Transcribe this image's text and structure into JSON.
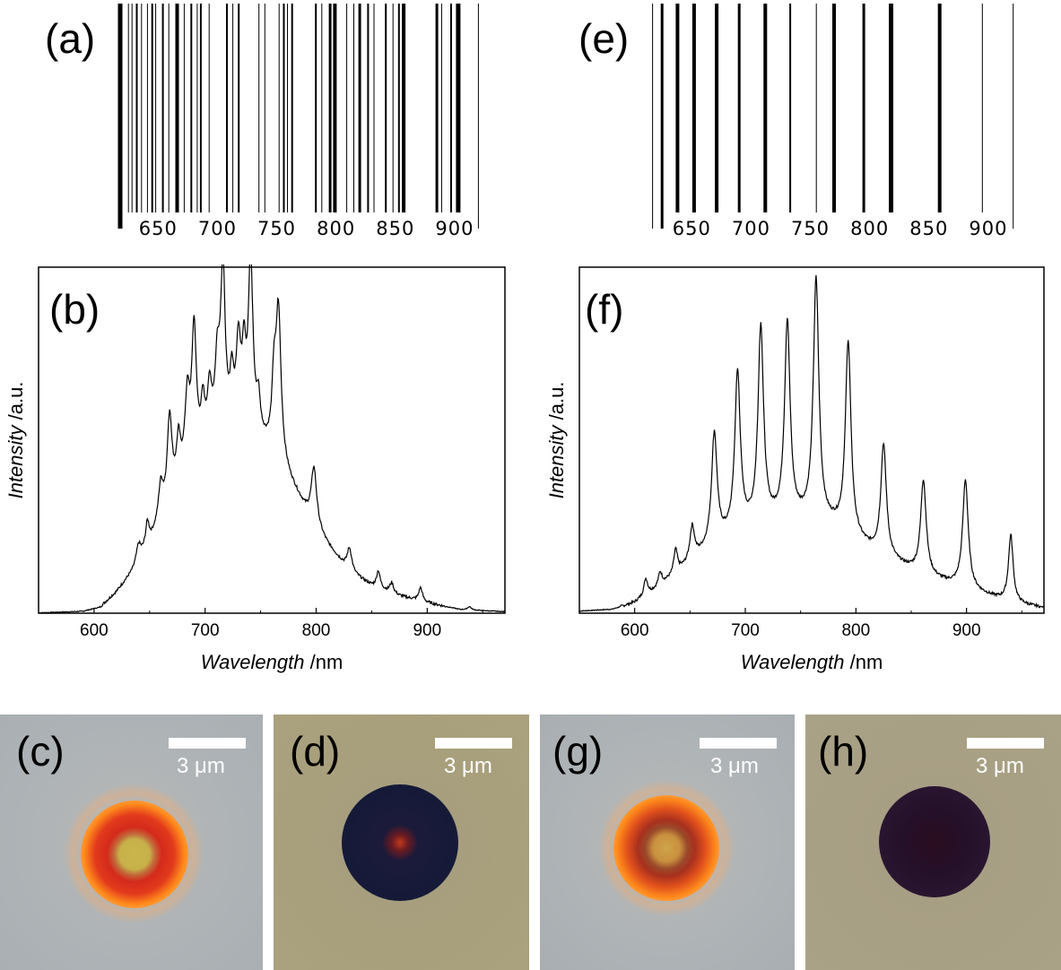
{
  "panels": {
    "a": "(a)",
    "b": "(b)",
    "c": "(c)",
    "d": "(d)",
    "e": "(e)",
    "f": "(f)",
    "g": "(g)",
    "h": "(h)"
  },
  "scale_bar_label": "3 μm",
  "colors": {
    "micro_bg_light": "#aeb3b6",
    "micro_bg_tan": "#a8a07c",
    "micro_bg_tan2": "#a69d83",
    "ring_orange": "#ff8a1c",
    "ring_red": "#d42a1c",
    "core_yellow": "#c9b64a",
    "dark_disk_navy": "#151a38",
    "dark_disk_purple": "#25102a"
  },
  "chart_data": [
    {
      "panel": "a",
      "type": "barcode",
      "xlim": [
        615,
        925
      ],
      "tick_labels": [
        "650",
        "700",
        "750",
        "800",
        "850",
        "900"
      ],
      "lines": [
        {
          "x": 618,
          "w": 5
        },
        {
          "x": 625,
          "w": 1
        },
        {
          "x": 628,
          "w": 1
        },
        {
          "x": 632,
          "w": 2
        },
        {
          "x": 636,
          "w": 1
        },
        {
          "x": 641,
          "w": 1
        },
        {
          "x": 645,
          "w": 2
        },
        {
          "x": 648,
          "w": 1
        },
        {
          "x": 654,
          "w": 2
        },
        {
          "x": 659,
          "w": 1
        },
        {
          "x": 666,
          "w": 4
        },
        {
          "x": 672,
          "w": 1
        },
        {
          "x": 678,
          "w": 2
        },
        {
          "x": 683,
          "w": 1
        },
        {
          "x": 686,
          "w": 2
        },
        {
          "x": 693,
          "w": 1
        },
        {
          "x": 708,
          "w": 2
        },
        {
          "x": 713,
          "w": 1
        },
        {
          "x": 718,
          "w": 2
        },
        {
          "x": 735,
          "w": 1
        },
        {
          "x": 740,
          "w": 1
        },
        {
          "x": 752,
          "w": 1
        },
        {
          "x": 756,
          "w": 2
        },
        {
          "x": 759,
          "w": 1
        },
        {
          "x": 763,
          "w": 2
        },
        {
          "x": 783,
          "w": 2
        },
        {
          "x": 788,
          "w": 1
        },
        {
          "x": 795,
          "w": 3
        },
        {
          "x": 799,
          "w": 4
        },
        {
          "x": 809,
          "w": 1
        },
        {
          "x": 815,
          "w": 1
        },
        {
          "x": 820,
          "w": 3
        },
        {
          "x": 827,
          "w": 2
        },
        {
          "x": 832,
          "w": 1
        },
        {
          "x": 842,
          "w": 2
        },
        {
          "x": 848,
          "w": 1
        },
        {
          "x": 853,
          "w": 2
        },
        {
          "x": 857,
          "w": 4
        },
        {
          "x": 885,
          "w": 3
        },
        {
          "x": 889,
          "w": 1
        },
        {
          "x": 897,
          "w": 2
        },
        {
          "x": 903,
          "w": 5
        },
        {
          "x": 920,
          "w": 1
        }
      ]
    },
    {
      "panel": "e",
      "type": "barcode",
      "xlim": [
        615,
        925
      ],
      "tick_labels": [
        "650",
        "700",
        "750",
        "800",
        "850",
        "900"
      ],
      "lines": [
        {
          "x": 617,
          "w": 1
        },
        {
          "x": 625,
          "w": 3
        },
        {
          "x": 638,
          "w": 4
        },
        {
          "x": 652,
          "w": 4
        },
        {
          "x": 671,
          "w": 4
        },
        {
          "x": 690,
          "w": 3
        },
        {
          "x": 712,
          "w": 4
        },
        {
          "x": 733,
          "w": 2
        },
        {
          "x": 755,
          "w": 1
        },
        {
          "x": 770,
          "w": 4
        },
        {
          "x": 795,
          "w": 3
        },
        {
          "x": 818,
          "w": 5
        },
        {
          "x": 859,
          "w": 4
        },
        {
          "x": 895,
          "w": 1
        },
        {
          "x": 921,
          "w": 1
        }
      ]
    },
    {
      "panel": "b",
      "type": "line",
      "xlabel": "Wavelength /nm",
      "ylabel": "Intensity /a.u.",
      "xlim": [
        550,
        970
      ],
      "ylim": [
        0,
        1
      ],
      "xticks": [
        600,
        700,
        800,
        900
      ],
      "envelope": [
        [
          550,
          0
        ],
        [
          590,
          0.004
        ],
        [
          605,
          0.015
        ],
        [
          620,
          0.06
        ],
        [
          635,
          0.12
        ],
        [
          650,
          0.2
        ],
        [
          665,
          0.3
        ],
        [
          680,
          0.4
        ],
        [
          695,
          0.46
        ],
        [
          710,
          0.5
        ],
        [
          725,
          0.52
        ],
        [
          740,
          0.52
        ],
        [
          760,
          0.47
        ],
        [
          770,
          0.42
        ],
        [
          782,
          0.35
        ],
        [
          795,
          0.27
        ],
        [
          810,
          0.2
        ],
        [
          830,
          0.12
        ],
        [
          850,
          0.08
        ],
        [
          875,
          0.05
        ],
        [
          900,
          0.03
        ],
        [
          930,
          0.01
        ],
        [
          970,
          0.004
        ]
      ],
      "peaks": [
        [
          640,
          0.05,
          2.5
        ],
        [
          648,
          0.07,
          2
        ],
        [
          660,
          0.1,
          2.5
        ],
        [
          668,
          0.25,
          2.5
        ],
        [
          676,
          0.12,
          2
        ],
        [
          684,
          0.2,
          2.5
        ],
        [
          690,
          0.38,
          2.5
        ],
        [
          698,
          0.12,
          2
        ],
        [
          704,
          0.15,
          2.5
        ],
        [
          711,
          0.2,
          2.5
        ],
        [
          716,
          0.48,
          2.5
        ],
        [
          724,
          0.14,
          2
        ],
        [
          730,
          0.25,
          2.5
        ],
        [
          735,
          0.2,
          2
        ],
        [
          741,
          0.5,
          2.5
        ],
        [
          748,
          0.1,
          2
        ],
        [
          762,
          0.18,
          2
        ],
        [
          766,
          0.44,
          2.8
        ],
        [
          798,
          0.17,
          3
        ],
        [
          830,
          0.07,
          2.5
        ],
        [
          856,
          0.05,
          2
        ],
        [
          868,
          0.03,
          2
        ],
        [
          894,
          0.04,
          2
        ],
        [
          938,
          0.01,
          2
        ]
      ]
    },
    {
      "panel": "f",
      "type": "line",
      "xlabel": "Wavelength /nm",
      "ylabel": "Intensity /a.u.",
      "xlim": [
        550,
        970
      ],
      "ylim": [
        0,
        1
      ],
      "xticks": [
        600,
        700,
        800,
        900
      ],
      "envelope": [
        [
          550,
          0.005
        ],
        [
          580,
          0.01
        ],
        [
          600,
          0.03
        ],
        [
          620,
          0.07
        ],
        [
          640,
          0.12
        ],
        [
          660,
          0.17
        ],
        [
          680,
          0.21
        ],
        [
          700,
          0.24
        ],
        [
          720,
          0.26
        ],
        [
          740,
          0.27
        ],
        [
          760,
          0.27
        ],
        [
          780,
          0.25
        ],
        [
          800,
          0.21
        ],
        [
          820,
          0.17
        ],
        [
          840,
          0.14
        ],
        [
          860,
          0.11
        ],
        [
          880,
          0.09
        ],
        [
          900,
          0.07
        ],
        [
          920,
          0.05
        ],
        [
          940,
          0.03
        ],
        [
          970,
          0.015
        ]
      ],
      "peaks": [
        [
          610,
          0.05,
          2
        ],
        [
          623,
          0.04,
          2
        ],
        [
          637,
          0.07,
          2
        ],
        [
          652,
          0.1,
          2.5
        ],
        [
          672,
          0.33,
          3
        ],
        [
          693,
          0.47,
          3
        ],
        [
          714,
          0.58,
          3
        ],
        [
          738,
          0.58,
          3
        ],
        [
          764,
          0.71,
          3
        ],
        [
          793,
          0.57,
          3
        ],
        [
          825,
          0.33,
          3
        ],
        [
          861,
          0.28,
          3
        ],
        [
          899,
          0.32,
          3
        ],
        [
          940,
          0.2,
          2.5
        ]
      ]
    }
  ]
}
